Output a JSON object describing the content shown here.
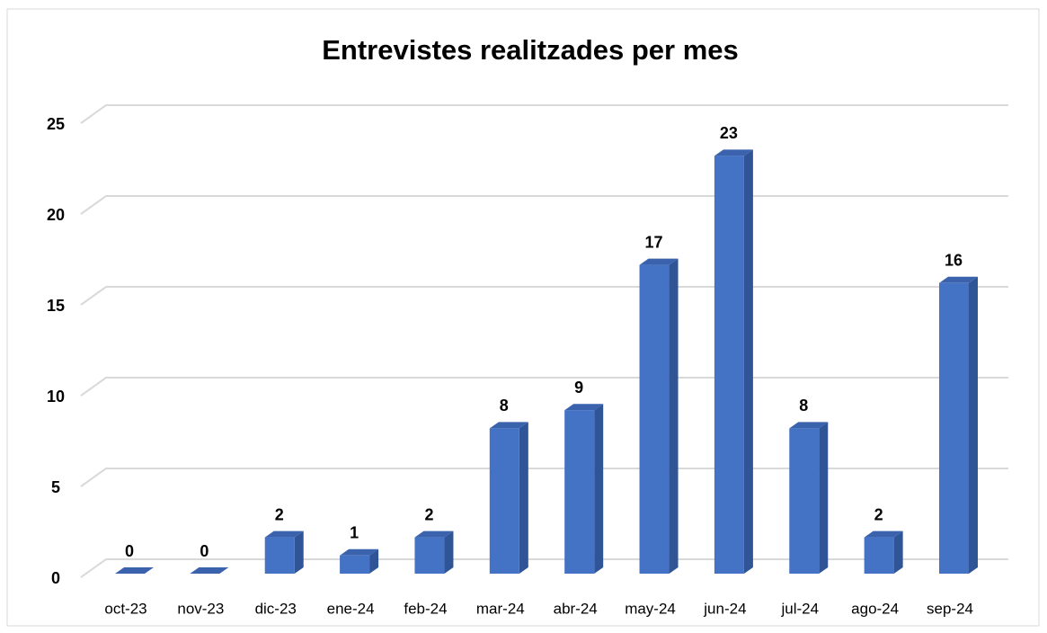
{
  "chart_data": {
    "type": "bar",
    "title": "Entrevistes realitzades per mes",
    "categories": [
      "oct-23",
      "nov-23",
      "dic-23",
      "ene-24",
      "feb-24",
      "mar-24",
      "abr-24",
      "may-24",
      "jun-24",
      "jul-24",
      "ago-24",
      "sep-24"
    ],
    "values": [
      0,
      0,
      2,
      1,
      2,
      8,
      9,
      17,
      23,
      8,
      2,
      16
    ],
    "color": "#4472c4",
    "ylim": [
      0,
      25
    ],
    "yticks": [
      0,
      5,
      10,
      15,
      20,
      25
    ],
    "grid": true
  }
}
